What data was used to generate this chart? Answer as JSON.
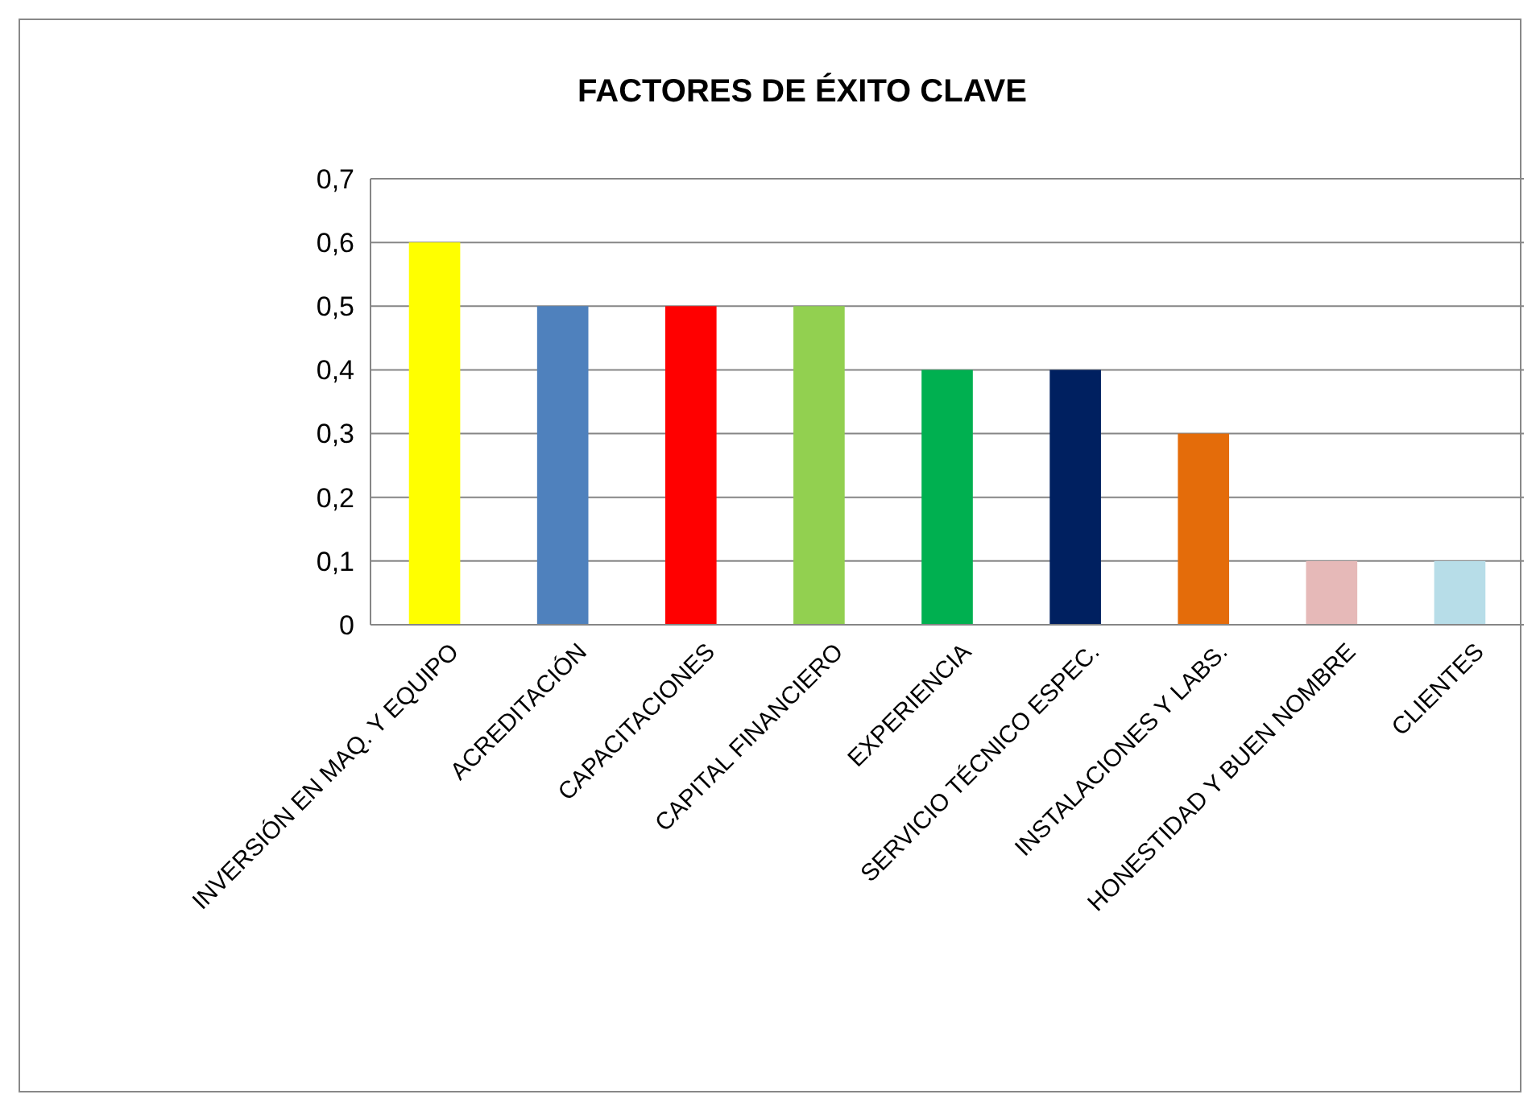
{
  "chart_data": {
    "type": "bar",
    "title": "FACTORES DE ÉXITO CLAVE",
    "categories": [
      "INVERSIÓN EN MAQ. Y EQUIPO",
      "ACREDITACIÓN",
      "CAPACITACIONES",
      "CAPITAL FINANCIERO",
      "EXPERIENCIA",
      "SERVICIO TÉCNICO ESPEC.",
      "INSTALACIONES Y LABS.",
      "HONESTIDAD Y BUEN NOMBRE",
      "CLIENTES"
    ],
    "values": [
      0.6,
      0.5,
      0.5,
      0.5,
      0.4,
      0.4,
      0.3,
      0.1,
      0.1
    ],
    "colors": [
      "#ffff00",
      "#4f81bd",
      "#ff0000",
      "#92d050",
      "#00b050",
      "#002060",
      "#e46c0a",
      "#e6b9b8",
      "#b7dde8"
    ],
    "ylim": [
      0,
      0.7
    ],
    "yticks": [
      0,
      {
        "value": 0.1,
        "label": "0,1"
      },
      {
        "value": 0.2,
        "label": "0,2"
      },
      {
        "value": 0.3,
        "label": "0,3"
      },
      {
        "value": 0.4,
        "label": "0,4"
      },
      {
        "value": 0.5,
        "label": "0,5"
      },
      {
        "value": 0.6,
        "label": "0,6"
      },
      {
        "value": 0.7,
        "label": "0,7"
      }
    ],
    "grid": "y"
  }
}
